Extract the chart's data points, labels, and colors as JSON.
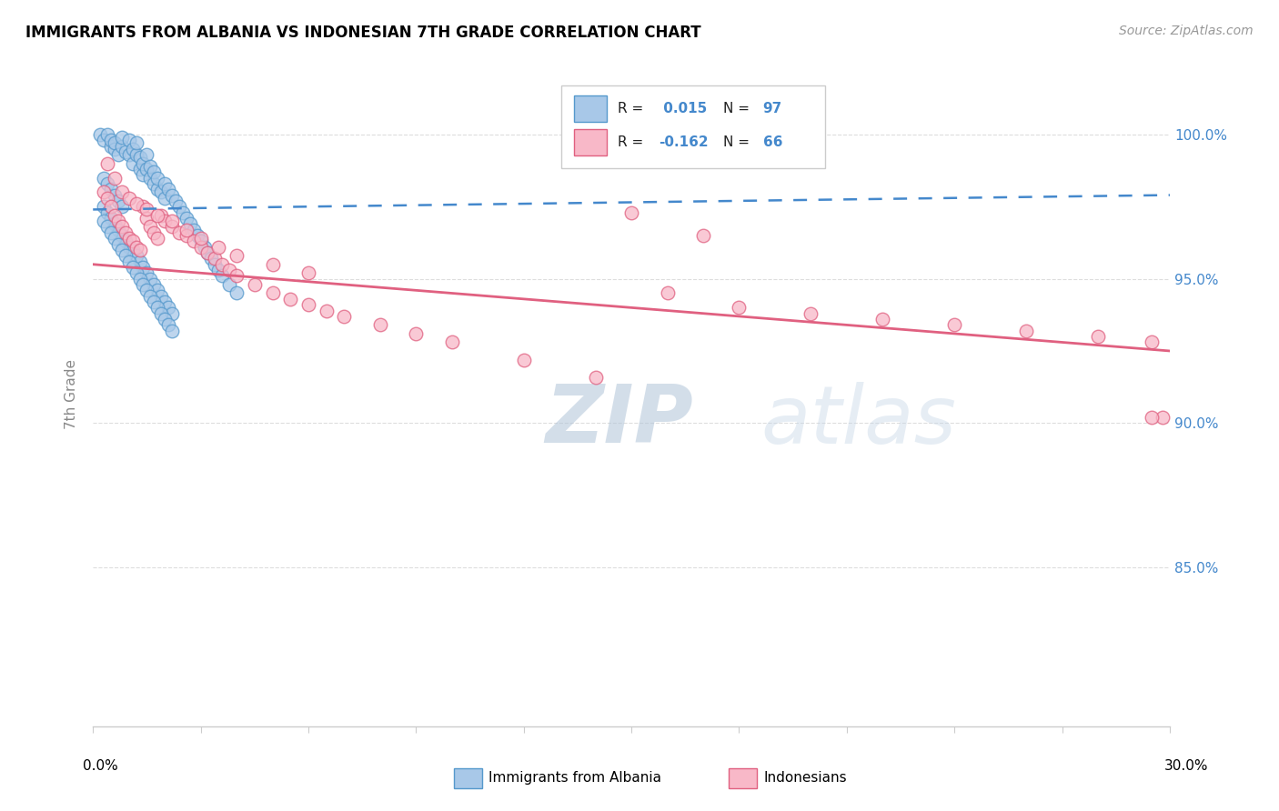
{
  "title": "IMMIGRANTS FROM ALBANIA VS INDONESIAN 7TH GRADE CORRELATION CHART",
  "source": "Source: ZipAtlas.com",
  "ylabel": "7th Grade",
  "x_range": [
    0.0,
    0.3
  ],
  "y_range": [
    0.795,
    1.025
  ],
  "y_ticks": [
    0.85,
    0.9,
    0.95,
    1.0
  ],
  "y_tick_labels": [
    "85.0%",
    "90.0%",
    "95.0%",
    "100.0%"
  ],
  "color_albania": "#a8c8e8",
  "color_albania_edge": "#5599cc",
  "color_indonesian": "#f8b8c8",
  "color_indonesian_edge": "#e06080",
  "color_albania_line": "#4488cc",
  "color_indonesian_line": "#e06080",
  "color_ytick": "#4488cc",
  "color_grid": "#dddddd",
  "watermark_color": "#c8d8e8",
  "albania_x": [
    0.002,
    0.003,
    0.004,
    0.005,
    0.005,
    0.006,
    0.006,
    0.007,
    0.008,
    0.008,
    0.009,
    0.01,
    0.01,
    0.011,
    0.011,
    0.012,
    0.012,
    0.013,
    0.013,
    0.014,
    0.014,
    0.015,
    0.015,
    0.016,
    0.016,
    0.017,
    0.017,
    0.018,
    0.018,
    0.019,
    0.02,
    0.02,
    0.021,
    0.022,
    0.023,
    0.024,
    0.025,
    0.026,
    0.027,
    0.028,
    0.029,
    0.03,
    0.031,
    0.032,
    0.033,
    0.034,
    0.035,
    0.036,
    0.038,
    0.04,
    0.003,
    0.004,
    0.005,
    0.006,
    0.007,
    0.008,
    0.009,
    0.01,
    0.011,
    0.012,
    0.013,
    0.014,
    0.015,
    0.016,
    0.017,
    0.018,
    0.019,
    0.02,
    0.021,
    0.022,
    0.003,
    0.004,
    0.005,
    0.006,
    0.007,
    0.008,
    0.009,
    0.01,
    0.011,
    0.012,
    0.013,
    0.014,
    0.015,
    0.016,
    0.017,
    0.018,
    0.019,
    0.02,
    0.021,
    0.022,
    0.003,
    0.004,
    0.005,
    0.006,
    0.007,
    0.008
  ],
  "albania_y": [
    1.0,
    0.998,
    1.0,
    0.996,
    0.998,
    0.995,
    0.997,
    0.993,
    0.996,
    0.999,
    0.994,
    0.998,
    0.993,
    0.995,
    0.99,
    0.993,
    0.997,
    0.988,
    0.992,
    0.986,
    0.99,
    0.988,
    0.993,
    0.985,
    0.989,
    0.983,
    0.987,
    0.981,
    0.985,
    0.98,
    0.983,
    0.978,
    0.981,
    0.979,
    0.977,
    0.975,
    0.973,
    0.971,
    0.969,
    0.967,
    0.965,
    0.963,
    0.961,
    0.959,
    0.957,
    0.955,
    0.953,
    0.951,
    0.948,
    0.945,
    0.975,
    0.973,
    0.971,
    0.969,
    0.967,
    0.965,
    0.963,
    0.961,
    0.96,
    0.958,
    0.956,
    0.954,
    0.952,
    0.95,
    0.948,
    0.946,
    0.944,
    0.942,
    0.94,
    0.938,
    0.97,
    0.968,
    0.966,
    0.964,
    0.962,
    0.96,
    0.958,
    0.956,
    0.954,
    0.952,
    0.95,
    0.948,
    0.946,
    0.944,
    0.942,
    0.94,
    0.938,
    0.936,
    0.934,
    0.932,
    0.985,
    0.983,
    0.981,
    0.979,
    0.977,
    0.975
  ],
  "indonesian_x": [
    0.003,
    0.004,
    0.005,
    0.006,
    0.007,
    0.008,
    0.009,
    0.01,
    0.011,
    0.012,
    0.013,
    0.014,
    0.015,
    0.016,
    0.017,
    0.018,
    0.019,
    0.02,
    0.022,
    0.024,
    0.026,
    0.028,
    0.03,
    0.032,
    0.034,
    0.036,
    0.038,
    0.04,
    0.045,
    0.05,
    0.055,
    0.06,
    0.065,
    0.07,
    0.08,
    0.09,
    0.1,
    0.12,
    0.14,
    0.16,
    0.18,
    0.2,
    0.22,
    0.24,
    0.26,
    0.28,
    0.295,
    0.298,
    0.004,
    0.006,
    0.008,
    0.01,
    0.012,
    0.015,
    0.018,
    0.022,
    0.026,
    0.03,
    0.035,
    0.04,
    0.05,
    0.06,
    0.15,
    0.17,
    0.295
  ],
  "indonesian_y": [
    0.98,
    0.978,
    0.975,
    0.972,
    0.97,
    0.968,
    0.966,
    0.964,
    0.963,
    0.961,
    0.96,
    0.975,
    0.971,
    0.968,
    0.966,
    0.964,
    0.972,
    0.97,
    0.968,
    0.966,
    0.965,
    0.963,
    0.961,
    0.959,
    0.957,
    0.955,
    0.953,
    0.951,
    0.948,
    0.945,
    0.943,
    0.941,
    0.939,
    0.937,
    0.934,
    0.931,
    0.928,
    0.922,
    0.916,
    0.945,
    0.94,
    0.938,
    0.936,
    0.934,
    0.932,
    0.93,
    0.928,
    0.902,
    0.99,
    0.985,
    0.98,
    0.978,
    0.976,
    0.974,
    0.972,
    0.97,
    0.967,
    0.964,
    0.961,
    0.958,
    0.955,
    0.952,
    0.973,
    0.965,
    0.902
  ],
  "alb_trend_x0": 0.0,
  "alb_trend_x1": 0.3,
  "alb_trend_y0": 0.974,
  "alb_trend_y1": 0.979,
  "ind_trend_x0": 0.0,
  "ind_trend_x1": 0.3,
  "ind_trend_y0": 0.955,
  "ind_trend_y1": 0.925
}
